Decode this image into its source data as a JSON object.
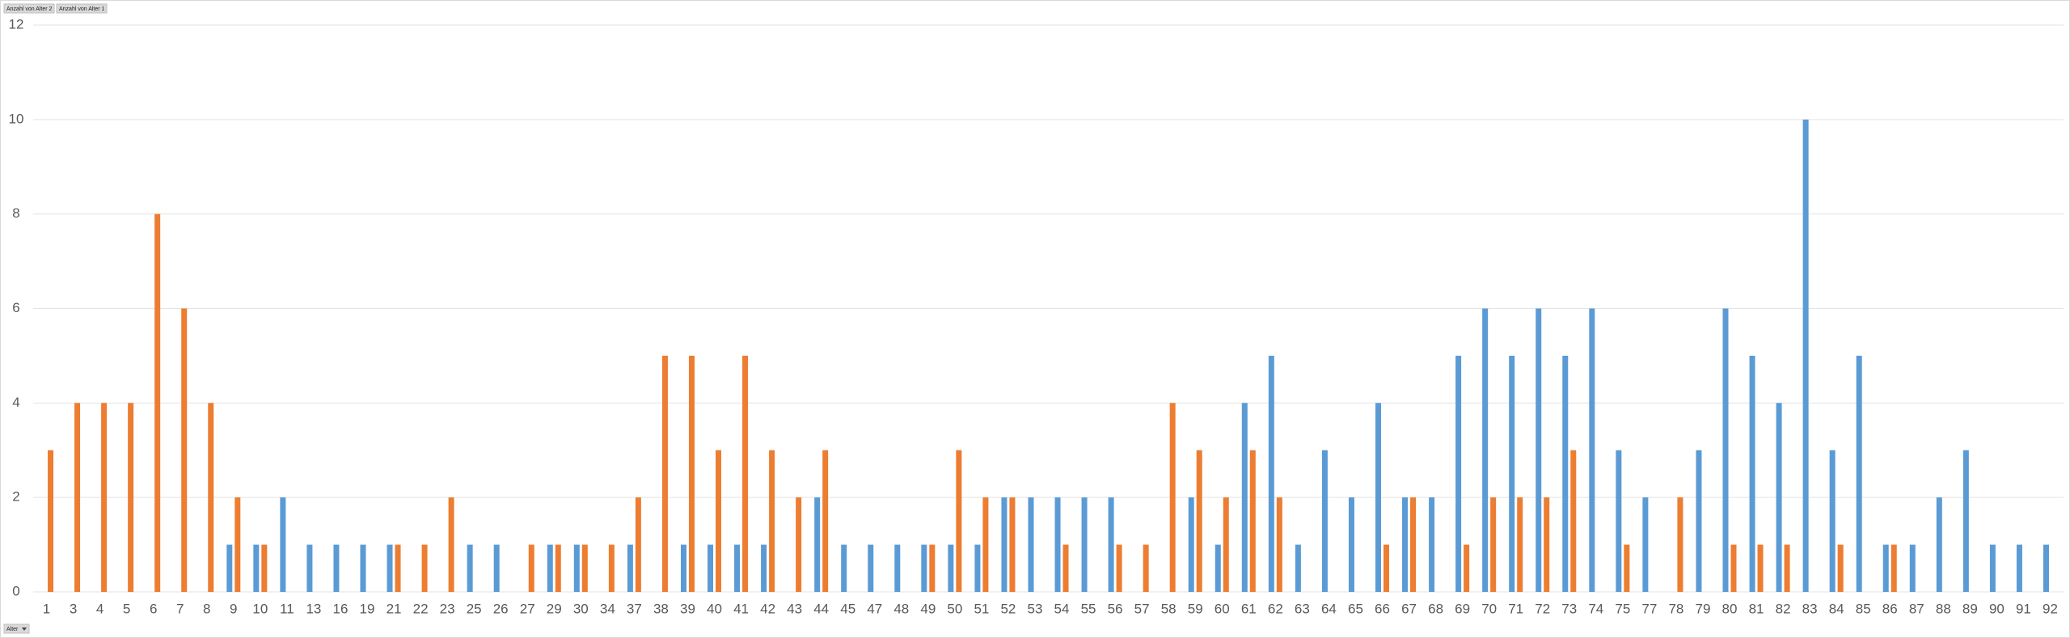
{
  "chart_data": {
    "type": "bar",
    "field_button": "Alter",
    "categories": [
      "1",
      "3",
      "4",
      "5",
      "6",
      "7",
      "8",
      "9",
      "10",
      "11",
      "13",
      "16",
      "19",
      "21",
      "22",
      "23",
      "25",
      "26",
      "27",
      "29",
      "30",
      "34",
      "37",
      "38",
      "39",
      "40",
      "41",
      "42",
      "43",
      "44",
      "45",
      "47",
      "48",
      "49",
      "50",
      "51",
      "52",
      "53",
      "54",
      "55",
      "56",
      "57",
      "58",
      "59",
      "60",
      "61",
      "62",
      "63",
      "64",
      "65",
      "66",
      "67",
      "68",
      "69",
      "70",
      "71",
      "72",
      "73",
      "74",
      "75",
      "77",
      "78",
      "79",
      "80",
      "81",
      "82",
      "83",
      "84",
      "85",
      "86",
      "87",
      "88",
      "89",
      "90",
      "91",
      "92"
    ],
    "series": [
      {
        "name": "Anzahl von Alter 2",
        "color": "#5b9bd5",
        "values": [
          null,
          null,
          null,
          null,
          null,
          null,
          null,
          1,
          1,
          2,
          1,
          1,
          1,
          1,
          null,
          null,
          1,
          1,
          null,
          1,
          1,
          null,
          1,
          null,
          1,
          1,
          1,
          1,
          null,
          2,
          1,
          1,
          1,
          1,
          1,
          1,
          2,
          2,
          2,
          2,
          2,
          null,
          null,
          2,
          1,
          4,
          5,
          1,
          3,
          2,
          4,
          2,
          2,
          5,
          6,
          5,
          6,
          5,
          6,
          3,
          2,
          null,
          3,
          6,
          5,
          4,
          10,
          3,
          5,
          1,
          1,
          2,
          3,
          1,
          1,
          1
        ]
      },
      {
        "name": "Anzahl von Alter 1",
        "color": "#ed7d31",
        "values": [
          3,
          4,
          4,
          4,
          8,
          6,
          4,
          2,
          1,
          null,
          null,
          null,
          null,
          1,
          1,
          2,
          null,
          null,
          1,
          1,
          1,
          1,
          2,
          5,
          5,
          3,
          5,
          3,
          2,
          3,
          null,
          null,
          null,
          1,
          3,
          2,
          2,
          null,
          1,
          null,
          1,
          1,
          4,
          3,
          2,
          3,
          2,
          null,
          null,
          null,
          1,
          2,
          null,
          1,
          2,
          2,
          2,
          3,
          null,
          1,
          null,
          2,
          null,
          1,
          1,
          1,
          null,
          1,
          null,
          1,
          null,
          null,
          null,
          null,
          null,
          null
        ]
      }
    ],
    "ylim": [
      0,
      12
    ],
    "yticks": [
      0,
      2,
      4,
      6,
      8,
      10,
      12
    ],
    "grid": true
  }
}
